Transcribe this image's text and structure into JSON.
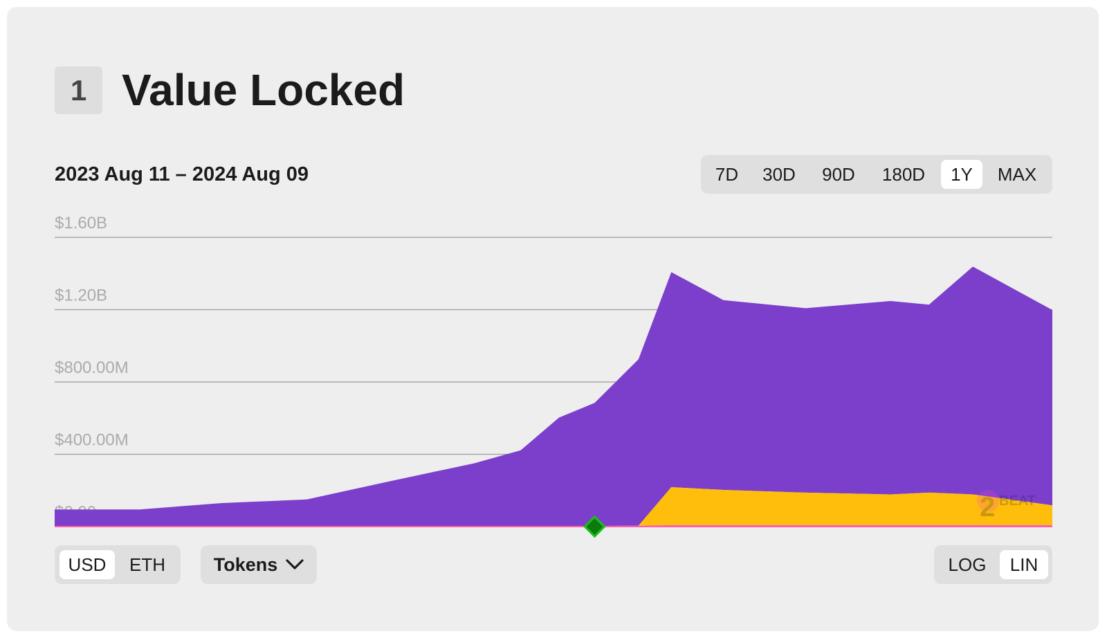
{
  "section": {
    "number": "1",
    "title": "Value Locked"
  },
  "date_range": "2023 Aug 11 – 2024 Aug 09",
  "time_ranges": [
    {
      "label": "7D",
      "active": false
    },
    {
      "label": "30D",
      "active": false
    },
    {
      "label": "90D",
      "active": false
    },
    {
      "label": "180D",
      "active": false
    },
    {
      "label": "1Y",
      "active": true
    },
    {
      "label": "MAX",
      "active": false
    }
  ],
  "currency_toggle": [
    {
      "label": "USD",
      "active": true
    },
    {
      "label": "ETH",
      "active": false
    }
  ],
  "tokens_button": {
    "label": "Tokens",
    "icon": "chevron-down-icon"
  },
  "scale_toggle": [
    {
      "label": "LOG",
      "active": false
    },
    {
      "label": "LIN",
      "active": true
    }
  ],
  "watermark": {
    "text": "L2BEAT"
  },
  "chart_data": {
    "type": "area",
    "stacked": true,
    "x_range": [
      "2023-08-11",
      "2024-08-09"
    ],
    "y_ticks": [
      "$0.00",
      "$400.00M",
      "$800.00M",
      "$1.20B",
      "$1.60B"
    ],
    "ylim": [
      0,
      1600
    ],
    "y_unit": "USD millions",
    "grid": true,
    "legend": "none",
    "x": [
      "2023-08-11",
      "2023-09-11",
      "2023-10-11",
      "2023-11-11",
      "2023-12-11",
      "2024-01-11",
      "2024-01-28",
      "2024-02-11",
      "2024-02-24",
      "2024-03-11",
      "2024-03-23",
      "2024-04-11",
      "2024-05-11",
      "2024-06-11",
      "2024-06-25",
      "2024-07-11",
      "2024-08-09"
    ],
    "series": [
      {
        "color": "#ff5ea8",
        "values": [
          0,
          0,
          0,
          0,
          0,
          0,
          2,
          3,
          4,
          5,
          8,
          8,
          8,
          8,
          8,
          8,
          8
        ]
      },
      {
        "color": "#ffbe0b",
        "values": [
          0,
          0,
          0,
          0,
          0,
          0,
          0,
          0,
          0,
          0,
          210,
          195,
          180,
          170,
          180,
          170,
          110
        ]
      },
      {
        "color": "#7b3fcc",
        "values": [
          95,
          95,
          130,
          150,
          250,
          350,
          420,
          600,
          680,
          920,
          1190,
          1050,
          1020,
          1070,
          1040,
          1260,
          1080
        ]
      }
    ],
    "marker": {
      "x": "2024-02-24",
      "y": 0,
      "color": "#1bbf1b"
    }
  }
}
